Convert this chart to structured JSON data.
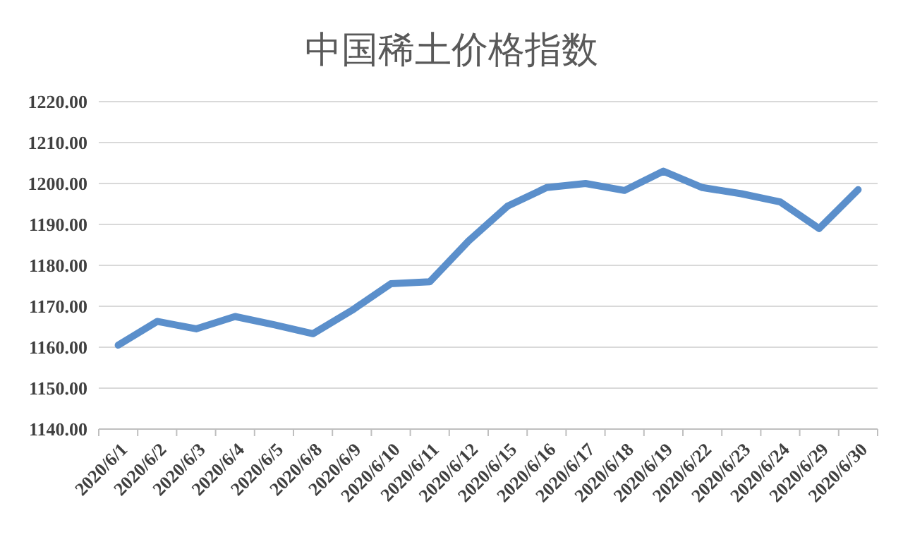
{
  "chart_data": {
    "type": "line",
    "title": "中国稀土价格指数",
    "categories": [
      "2020/6/1",
      "2020/6/2",
      "2020/6/3",
      "2020/6/4",
      "2020/6/5",
      "2020/6/8",
      "2020/6/9",
      "2020/6/10",
      "2020/6/11",
      "2020/6/12",
      "2020/6/15",
      "2020/6/16",
      "2020/6/17",
      "2020/6/18",
      "2020/6/19",
      "2020/6/22",
      "2020/6/23",
      "2020/6/24",
      "2020/6/29",
      "2020/6/30"
    ],
    "series": [
      {
        "color": "#5b8fcb",
        "values": [
          1160.5,
          1166.3,
          1164.5,
          1167.5,
          1165.5,
          1163.3,
          1169,
          1175.5,
          1176,
          1186,
          1194.5,
          1199,
          1200,
          1198.3,
          1203,
          1199,
          1197.5,
          1195.5,
          1189,
          1198.5
        ]
      }
    ],
    "ylim": [
      1140,
      1220
    ],
    "yticks": [
      {
        "value": 1140,
        "label": "1140.00"
      },
      {
        "value": 1150,
        "label": "1150.00"
      },
      {
        "value": 1160,
        "label": "1160.00"
      },
      {
        "value": 1170,
        "label": "1170.00"
      },
      {
        "value": 1180,
        "label": "1180.00"
      },
      {
        "value": 1190,
        "label": "1190.00"
      },
      {
        "value": 1200,
        "label": "1200.00"
      },
      {
        "value": 1210,
        "label": "1210.00"
      },
      {
        "value": 1220,
        "label": "1220.00"
      }
    ],
    "grid": "y",
    "marker": "none",
    "line_style": "solid"
  }
}
